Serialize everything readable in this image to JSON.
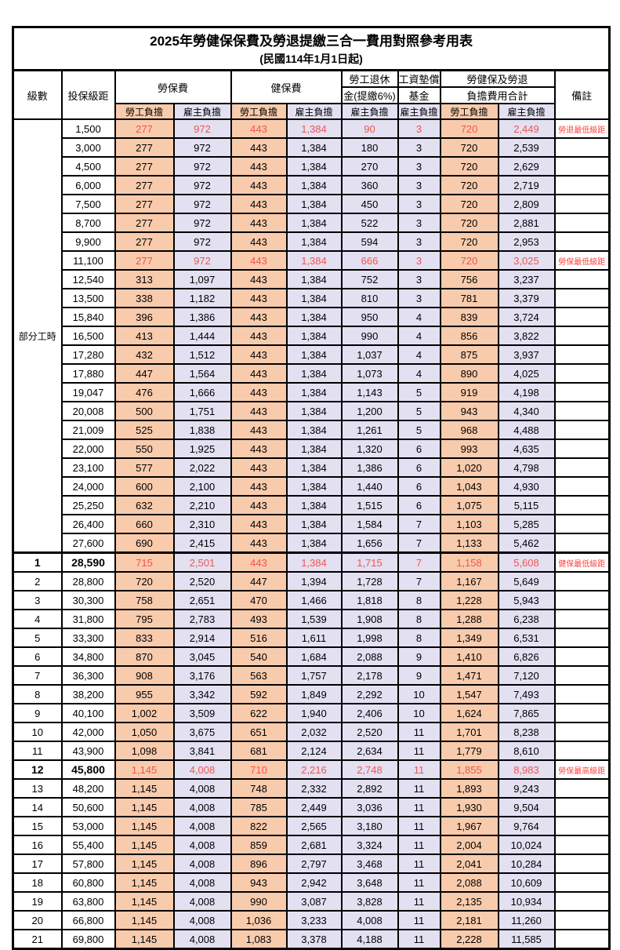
{
  "title": "2025年勞健保保費及勞退提繳三合一費用對照參考用表",
  "subtitle": "(民國114年1月1日起)",
  "header": {
    "level": "級數",
    "bracket": "投保級距",
    "labor": "勞保費",
    "health": "健保費",
    "pension_line1": "勞工退休",
    "pension_line2": "金(提繳6%)",
    "wage_line1": "工資墊償",
    "wage_line2": "基金",
    "total_line1": "勞健保及勞退",
    "total_line2": "負擔費用合計",
    "note": "備註",
    "employee": "勞工負擔",
    "employer": "雇主負擔"
  },
  "part_time_label": "部分工時",
  "colors": {
    "employee_fill": "#f8cbad",
    "employer_fill": "#e2e0f1",
    "value_red": "#f2544f",
    "note_red": "#ff4040",
    "border": "#000000"
  },
  "rows": [
    {
      "lv": "",
      "br": "1,500",
      "a": "277",
      "b": "972",
      "c": "443",
      "d": "1,384",
      "e": "90",
      "f": "3",
      "g": "720",
      "h": "2,449",
      "note": "勞退最低級距",
      "red": true
    },
    {
      "lv": "",
      "br": "3,000",
      "a": "277",
      "b": "972",
      "c": "443",
      "d": "1,384",
      "e": "180",
      "f": "3",
      "g": "720",
      "h": "2,539"
    },
    {
      "lv": "",
      "br": "4,500",
      "a": "277",
      "b": "972",
      "c": "443",
      "d": "1,384",
      "e": "270",
      "f": "3",
      "g": "720",
      "h": "2,629"
    },
    {
      "lv": "",
      "br": "6,000",
      "a": "277",
      "b": "972",
      "c": "443",
      "d": "1,384",
      "e": "360",
      "f": "3",
      "g": "720",
      "h": "2,719"
    },
    {
      "lv": "",
      "br": "7,500",
      "a": "277",
      "b": "972",
      "c": "443",
      "d": "1,384",
      "e": "450",
      "f": "3",
      "g": "720",
      "h": "2,809"
    },
    {
      "lv": "",
      "br": "8,700",
      "a": "277",
      "b": "972",
      "c": "443",
      "d": "1,384",
      "e": "522",
      "f": "3",
      "g": "720",
      "h": "2,881"
    },
    {
      "lv": "",
      "br": "9,900",
      "a": "277",
      "b": "972",
      "c": "443",
      "d": "1,384",
      "e": "594",
      "f": "3",
      "g": "720",
      "h": "2,953"
    },
    {
      "lv": "",
      "br": "11,100",
      "a": "277",
      "b": "972",
      "c": "443",
      "d": "1,384",
      "e": "666",
      "f": "3",
      "g": "720",
      "h": "3,025",
      "note": "勞保最低級距",
      "red": true
    },
    {
      "lv": "",
      "br": "12,540",
      "a": "313",
      "b": "1,097",
      "c": "443",
      "d": "1,384",
      "e": "752",
      "f": "3",
      "g": "756",
      "h": "3,237"
    },
    {
      "lv": "",
      "br": "13,500",
      "a": "338",
      "b": "1,182",
      "c": "443",
      "d": "1,384",
      "e": "810",
      "f": "3",
      "g": "781",
      "h": "3,379"
    },
    {
      "lv": "",
      "br": "15,840",
      "a": "396",
      "b": "1,386",
      "c": "443",
      "d": "1,384",
      "e": "950",
      "f": "4",
      "g": "839",
      "h": "3,724"
    },
    {
      "lv": "",
      "br": "16,500",
      "a": "413",
      "b": "1,444",
      "c": "443",
      "d": "1,384",
      "e": "990",
      "f": "4",
      "g": "856",
      "h": "3,822"
    },
    {
      "lv": "",
      "br": "17,280",
      "a": "432",
      "b": "1,512",
      "c": "443",
      "d": "1,384",
      "e": "1,037",
      "f": "4",
      "g": "875",
      "h": "3,937"
    },
    {
      "lv": "",
      "br": "17,880",
      "a": "447",
      "b": "1,564",
      "c": "443",
      "d": "1,384",
      "e": "1,073",
      "f": "4",
      "g": "890",
      "h": "4,025"
    },
    {
      "lv": "",
      "br": "19,047",
      "a": "476",
      "b": "1,666",
      "c": "443",
      "d": "1,384",
      "e": "1,143",
      "f": "5",
      "g": "919",
      "h": "4,198"
    },
    {
      "lv": "",
      "br": "20,008",
      "a": "500",
      "b": "1,751",
      "c": "443",
      "d": "1,384",
      "e": "1,200",
      "f": "5",
      "g": "943",
      "h": "4,340"
    },
    {
      "lv": "",
      "br": "21,009",
      "a": "525",
      "b": "1,838",
      "c": "443",
      "d": "1,384",
      "e": "1,261",
      "f": "5",
      "g": "968",
      "h": "4,488"
    },
    {
      "lv": "",
      "br": "22,000",
      "a": "550",
      "b": "1,925",
      "c": "443",
      "d": "1,384",
      "e": "1,320",
      "f": "6",
      "g": "993",
      "h": "4,635"
    },
    {
      "lv": "",
      "br": "23,100",
      "a": "577",
      "b": "2,022",
      "c": "443",
      "d": "1,384",
      "e": "1,386",
      "f": "6",
      "g": "1,020",
      "h": "4,798"
    },
    {
      "lv": "",
      "br": "24,000",
      "a": "600",
      "b": "2,100",
      "c": "443",
      "d": "1,384",
      "e": "1,440",
      "f": "6",
      "g": "1,043",
      "h": "4,930"
    },
    {
      "lv": "",
      "br": "25,250",
      "a": "632",
      "b": "2,210",
      "c": "443",
      "d": "1,384",
      "e": "1,515",
      "f": "6",
      "g": "1,075",
      "h": "5,115"
    },
    {
      "lv": "",
      "br": "26,400",
      "a": "660",
      "b": "2,310",
      "c": "443",
      "d": "1,384",
      "e": "1,584",
      "f": "7",
      "g": "1,103",
      "h": "5,285"
    },
    {
      "lv": "",
      "br": "27,600",
      "a": "690",
      "b": "2,415",
      "c": "443",
      "d": "1,384",
      "e": "1,656",
      "f": "7",
      "g": "1,133",
      "h": "5,462"
    },
    {
      "lv": "1",
      "br": "28,590",
      "a": "715",
      "b": "2,501",
      "c": "443",
      "d": "1,384",
      "e": "1,715",
      "f": "7",
      "g": "1,158",
      "h": "5,608",
      "note": "健保最低級距",
      "red": true,
      "bold": true
    },
    {
      "lv": "2",
      "br": "28,800",
      "a": "720",
      "b": "2,520",
      "c": "447",
      "d": "1,394",
      "e": "1,728",
      "f": "7",
      "g": "1,167",
      "h": "5,649"
    },
    {
      "lv": "3",
      "br": "30,300",
      "a": "758",
      "b": "2,651",
      "c": "470",
      "d": "1,466",
      "e": "1,818",
      "f": "8",
      "g": "1,228",
      "h": "5,943"
    },
    {
      "lv": "4",
      "br": "31,800",
      "a": "795",
      "b": "2,783",
      "c": "493",
      "d": "1,539",
      "e": "1,908",
      "f": "8",
      "g": "1,288",
      "h": "6,238"
    },
    {
      "lv": "5",
      "br": "33,300",
      "a": "833",
      "b": "2,914",
      "c": "516",
      "d": "1,611",
      "e": "1,998",
      "f": "8",
      "g": "1,349",
      "h": "6,531"
    },
    {
      "lv": "6",
      "br": "34,800",
      "a": "870",
      "b": "3,045",
      "c": "540",
      "d": "1,684",
      "e": "2,088",
      "f": "9",
      "g": "1,410",
      "h": "6,826"
    },
    {
      "lv": "7",
      "br": "36,300",
      "a": "908",
      "b": "3,176",
      "c": "563",
      "d": "1,757",
      "e": "2,178",
      "f": "9",
      "g": "1,471",
      "h": "7,120"
    },
    {
      "lv": "8",
      "br": "38,200",
      "a": "955",
      "b": "3,342",
      "c": "592",
      "d": "1,849",
      "e": "2,292",
      "f": "10",
      "g": "1,547",
      "h": "7,493"
    },
    {
      "lv": "9",
      "br": "40,100",
      "a": "1,002",
      "b": "3,509",
      "c": "622",
      "d": "1,940",
      "e": "2,406",
      "f": "10",
      "g": "1,624",
      "h": "7,865"
    },
    {
      "lv": "10",
      "br": "42,000",
      "a": "1,050",
      "b": "3,675",
      "c": "651",
      "d": "2,032",
      "e": "2,520",
      "f": "11",
      "g": "1,701",
      "h": "8,238"
    },
    {
      "lv": "11",
      "br": "43,900",
      "a": "1,098",
      "b": "3,841",
      "c": "681",
      "d": "2,124",
      "e": "2,634",
      "f": "11",
      "g": "1,779",
      "h": "8,610"
    },
    {
      "lv": "12",
      "br": "45,800",
      "a": "1,145",
      "b": "4,008",
      "c": "710",
      "d": "2,216",
      "e": "2,748",
      "f": "11",
      "g": "1,855",
      "h": "8,983",
      "note": "勞保最高級距",
      "red": true,
      "bold": true
    },
    {
      "lv": "13",
      "br": "48,200",
      "a": "1,145",
      "b": "4,008",
      "c": "748",
      "d": "2,332",
      "e": "2,892",
      "f": "11",
      "g": "1,893",
      "h": "9,243"
    },
    {
      "lv": "14",
      "br": "50,600",
      "a": "1,145",
      "b": "4,008",
      "c": "785",
      "d": "2,449",
      "e": "3,036",
      "f": "11",
      "g": "1,930",
      "h": "9,504"
    },
    {
      "lv": "15",
      "br": "53,000",
      "a": "1,145",
      "b": "4,008",
      "c": "822",
      "d": "2,565",
      "e": "3,180",
      "f": "11",
      "g": "1,967",
      "h": "9,764"
    },
    {
      "lv": "16",
      "br": "55,400",
      "a": "1,145",
      "b": "4,008",
      "c": "859",
      "d": "2,681",
      "e": "3,324",
      "f": "11",
      "g": "2,004",
      "h": "10,024"
    },
    {
      "lv": "17",
      "br": "57,800",
      "a": "1,145",
      "b": "4,008",
      "c": "896",
      "d": "2,797",
      "e": "3,468",
      "f": "11",
      "g": "2,041",
      "h": "10,284"
    },
    {
      "lv": "18",
      "br": "60,800",
      "a": "1,145",
      "b": "4,008",
      "c": "943",
      "d": "2,942",
      "e": "3,648",
      "f": "11",
      "g": "2,088",
      "h": "10,609"
    },
    {
      "lv": "19",
      "br": "63,800",
      "a": "1,145",
      "b": "4,008",
      "c": "990",
      "d": "3,087",
      "e": "3,828",
      "f": "11",
      "g": "2,135",
      "h": "10,934"
    },
    {
      "lv": "20",
      "br": "66,800",
      "a": "1,145",
      "b": "4,008",
      "c": "1,036",
      "d": "3,233",
      "e": "4,008",
      "f": "11",
      "g": "2,181",
      "h": "11,260"
    },
    {
      "lv": "21",
      "br": "69,800",
      "a": "1,145",
      "b": "4,008",
      "c": "1,083",
      "d": "3,378",
      "e": "4,188",
      "f": "11",
      "g": "2,228",
      "h": "11,585"
    }
  ]
}
